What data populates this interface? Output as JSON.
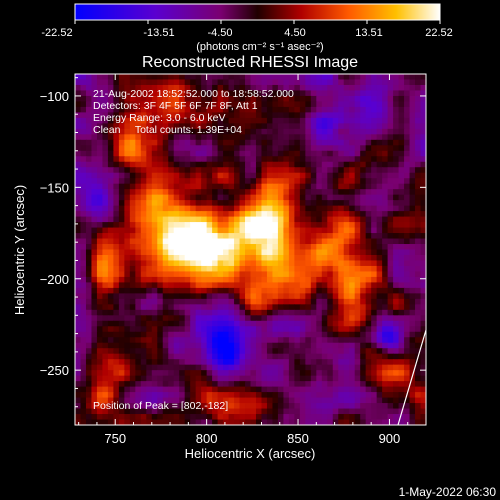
{
  "colorbar": {
    "ticks": [
      "-22.52",
      "-13.51",
      "-4.50",
      "4.50",
      "13.51",
      "22.52"
    ],
    "unit_label": "(photons cm⁻² s⁻¹ asec⁻²)"
  },
  "title": "Reconstructed RHESSI Image",
  "annotations": {
    "time_range": "21-Aug-2002 18:52:52.000 to 18:58:52.000",
    "detectors": "Detectors: 3F 4F 5F 6F 7F 8F, Att 1",
    "energy": "Energy Range: 3.0 - 6.0 keV",
    "clean": "Clean     Total counts: 1.39E+04",
    "peak": "Position of Peak = [802,-182]"
  },
  "footer": {
    "date": "1-May-2022 06:30"
  },
  "colors": {
    "background": "#000000",
    "text": "#ffffff"
  },
  "chart_data": {
    "type": "heatmap",
    "title": "Reconstructed RHESSI Image",
    "xlabel": "Heliocentric X (arcsec)",
    "ylabel": "Heliocentric Y (arcsec)",
    "x_ticks": [
      750,
      800,
      850,
      900
    ],
    "y_ticks": [
      -100,
      -150,
      -200,
      -250
    ],
    "xlim": [
      728,
      920
    ],
    "ylim": [
      -280,
      -88
    ],
    "zlim": [
      -22.52,
      22.52
    ],
    "colormap": "purple-red-yellow-white (RHESSI)",
    "peak": [
      802,
      -182
    ],
    "blobs": [
      {
        "x": 802,
        "y": -182,
        "sx": 22,
        "sy": 16,
        "amp": 23
      },
      {
        "x": 775,
        "y": -160,
        "sx": 14,
        "sy": 20,
        "amp": 16
      },
      {
        "x": 758,
        "y": -125,
        "sx": 9,
        "sy": 10,
        "amp": 10
      },
      {
        "x": 833,
        "y": -168,
        "sx": 12,
        "sy": 22,
        "amp": 15
      },
      {
        "x": 850,
        "y": -200,
        "sx": 10,
        "sy": 10,
        "amp": 12
      },
      {
        "x": 828,
        "y": -215,
        "sx": 9,
        "sy": 9,
        "amp": 12
      },
      {
        "x": 870,
        "y": -180,
        "sx": 10,
        "sy": 20,
        "amp": 13
      },
      {
        "x": 884,
        "y": -205,
        "sx": 10,
        "sy": 14,
        "amp": 12
      },
      {
        "x": 745,
        "y": -193,
        "sx": 7,
        "sy": 12,
        "amp": 13
      },
      {
        "x": 745,
        "y": -255,
        "sx": 10,
        "sy": 18,
        "amp": 11
      },
      {
        "x": 780,
        "y": -105,
        "sx": 12,
        "sy": 8,
        "amp": 8
      },
      {
        "x": 905,
        "y": -255,
        "sx": 14,
        "sy": 16,
        "amp": 9
      },
      {
        "x": 820,
        "y": -270,
        "sx": 20,
        "sy": 8,
        "amp": 6
      },
      {
        "x": 805,
        "y": -225,
        "sx": 22,
        "sy": 10,
        "amp": -8
      },
      {
        "x": 810,
        "y": -240,
        "sx": 8,
        "sy": 8,
        "amp": -14
      },
      {
        "x": 880,
        "y": -110,
        "sx": 20,
        "sy": 12,
        "amp": -9
      },
      {
        "x": 898,
        "y": -232,
        "sx": 6,
        "sy": 6,
        "amp": -16
      },
      {
        "x": 740,
        "y": -160,
        "sx": 8,
        "sy": 14,
        "amp": -10
      }
    ]
  }
}
